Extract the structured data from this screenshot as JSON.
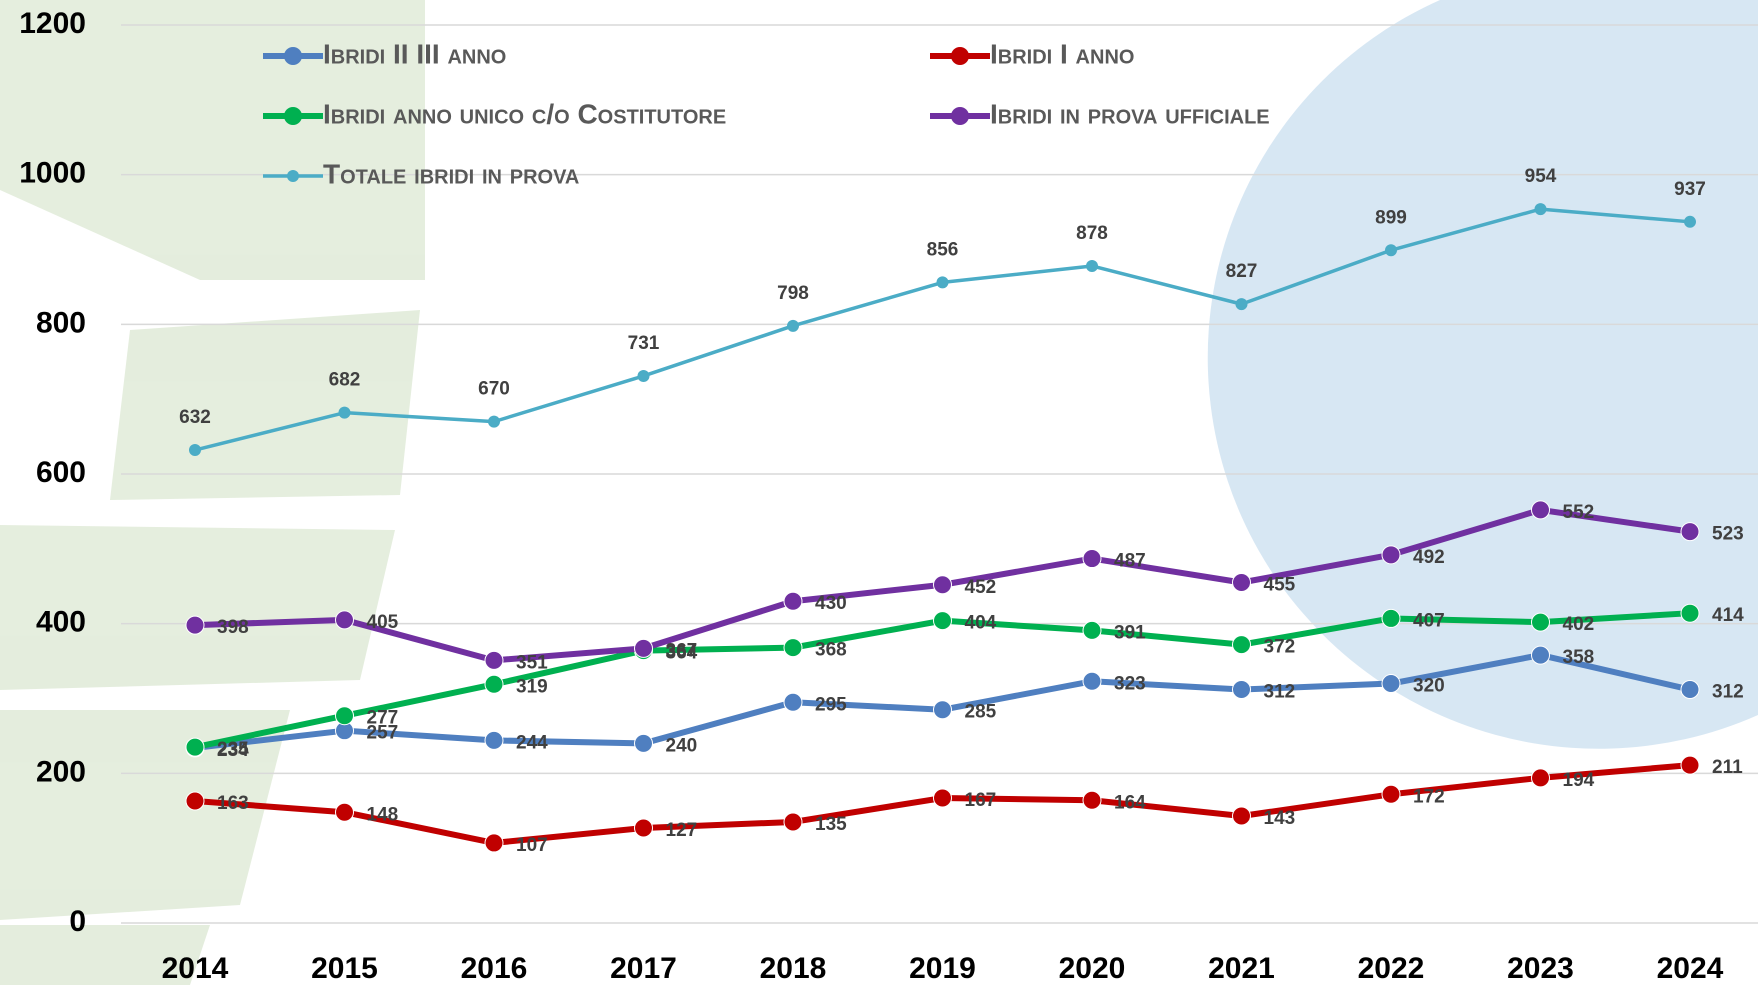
{
  "chart_data": {
    "type": "line",
    "categories": [
      "2014",
      "2015",
      "2016",
      "2017",
      "2018",
      "2019",
      "2020",
      "2021",
      "2022",
      "2023",
      "2024"
    ],
    "series": [
      {
        "name": "Ibridi II III anno",
        "color": "#4f7fc0",
        "values": [
          234,
          257,
          244,
          240,
          295,
          285,
          323,
          312,
          320,
          358,
          312
        ]
      },
      {
        "name": "Ibridi I anno",
        "color": "#c00000",
        "values": [
          163,
          148,
          107,
          127,
          135,
          167,
          164,
          143,
          172,
          194,
          211
        ]
      },
      {
        "name": "Ibridi anno unico c/o Costitutore",
        "color": "#00b050",
        "values": [
          235,
          277,
          319,
          364,
          368,
          404,
          391,
          372,
          407,
          402,
          414
        ]
      },
      {
        "name": "Ibridi in prova ufficiale",
        "color": "#7030a0",
        "values": [
          398,
          405,
          351,
          367,
          430,
          452,
          487,
          455,
          492,
          552,
          523
        ]
      },
      {
        "name": "Totale ibridi in prova",
        "color": "#4bacc6",
        "values": [
          632,
          682,
          670,
          731,
          798,
          856,
          878,
          827,
          899,
          954,
          937
        ]
      }
    ],
    "ylim": [
      0,
      1200
    ],
    "yticks": [
      0,
      200,
      400,
      600,
      800,
      1000,
      1200
    ],
    "grid": true
  }
}
